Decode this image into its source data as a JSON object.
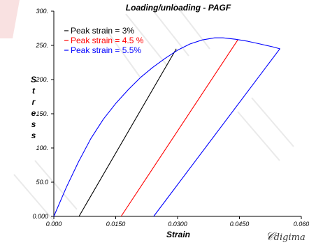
{
  "chart_data": {
    "type": "line",
    "title": "Loading/unloading - PAGF",
    "xlabel": "Strain",
    "ylabel": "Stress",
    "xlim": [
      0,
      0.06
    ],
    "ylim": [
      0,
      300
    ],
    "x_ticks": [
      "0.000",
      "0.0150",
      "0.0300",
      "0.0450",
      "0.060"
    ],
    "y_ticks": [
      "0.000",
      "50.0",
      "100.",
      "150.",
      "200.",
      "250.",
      "300."
    ],
    "legend_position": "top-left",
    "grid": false,
    "series": [
      {
        "name": "Peak strain = 3%",
        "color": "#000000",
        "x": [
          0.0061,
          0.0297
        ],
        "y": [
          0,
          245
        ]
      },
      {
        "name": "Peak strain = 4.5 %",
        "color": "#ff0000",
        "x": [
          0.0163,
          0.0446
        ],
        "y": [
          0,
          258
        ]
      },
      {
        "name": "Peak strain = 5.5%",
        "color": "#0000ff",
        "x": [
          0.0,
          0.003,
          0.006,
          0.009,
          0.012,
          0.015,
          0.018,
          0.021,
          0.024,
          0.027,
          0.03,
          0.033,
          0.036,
          0.039,
          0.041,
          0.044,
          0.047,
          0.05,
          0.053,
          0.0548,
          0.0242
        ],
        "y": [
          0,
          42,
          80,
          114,
          142,
          165,
          185,
          203,
          218,
          231,
          243,
          252,
          258,
          261,
          261,
          259,
          256,
          252,
          248,
          245,
          0
        ]
      }
    ]
  },
  "watermark_text": "digima"
}
